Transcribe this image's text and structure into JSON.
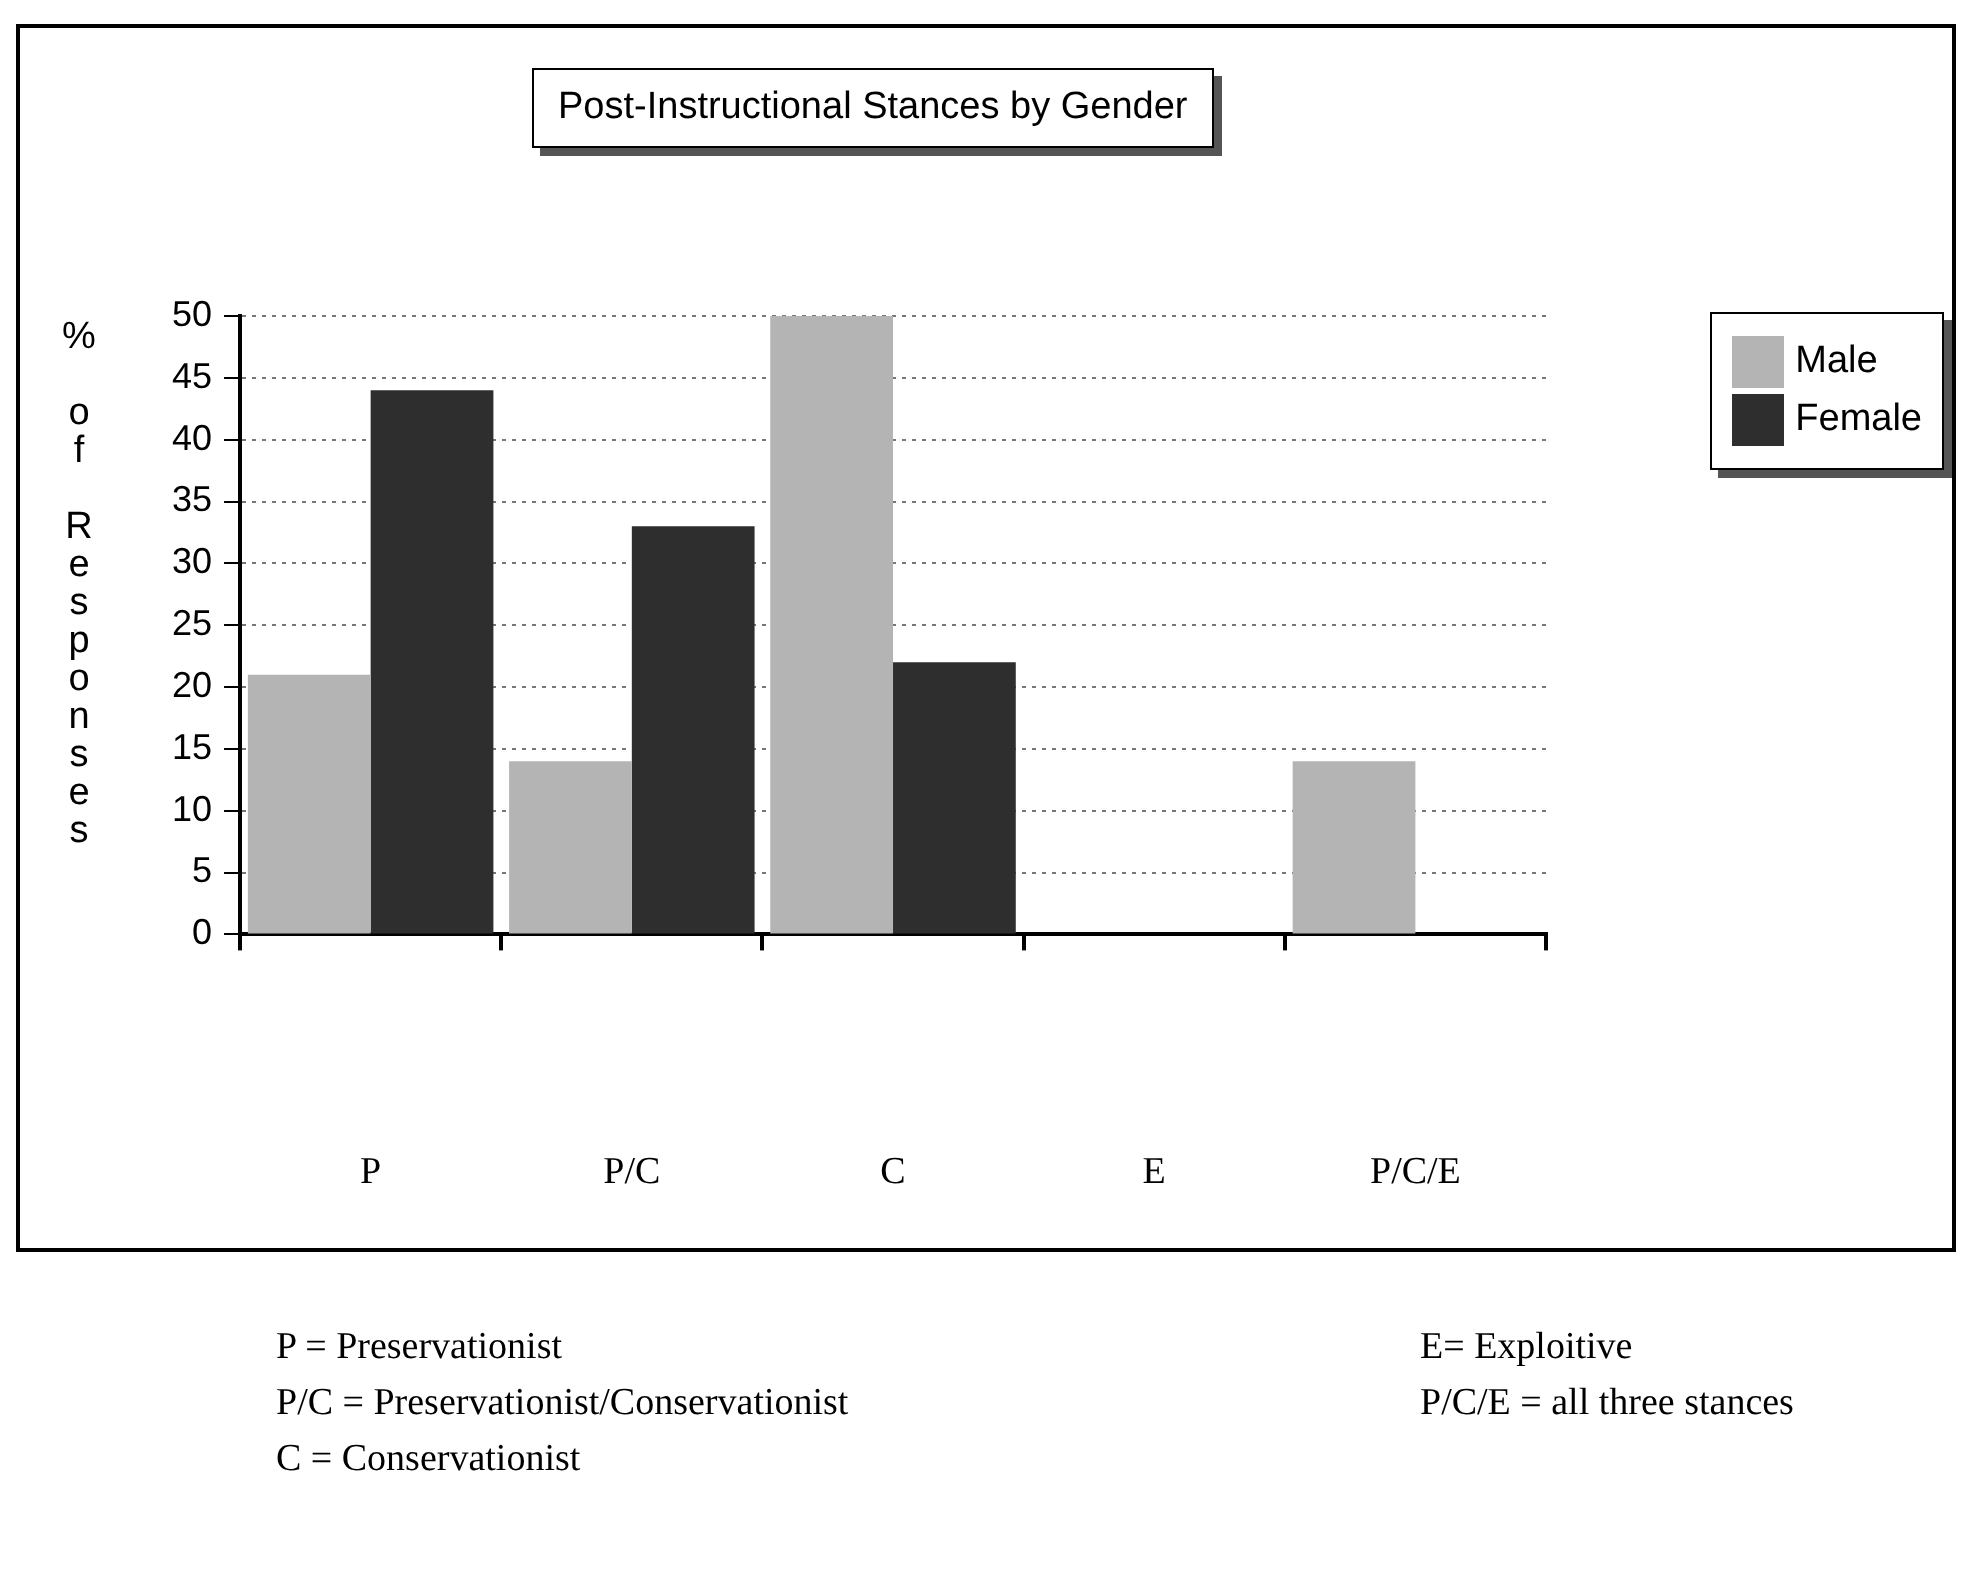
{
  "chart_data": {
    "type": "bar",
    "title": "Post-Instructional Stances by Gender",
    "ylabel": "% of Responses",
    "categories": [
      "P",
      "P/C",
      "C",
      "E",
      "P/C/E"
    ],
    "series": [
      {
        "name": "Male",
        "color": "#b4b4b4",
        "values": [
          21,
          14,
          50,
          0,
          14
        ]
      },
      {
        "name": "Female",
        "color": "#2e2e2e",
        "values": [
          44,
          33,
          22,
          0,
          0
        ]
      }
    ],
    "ylim": [
      0,
      50
    ],
    "yticks": [
      0,
      5,
      10,
      15,
      20,
      25,
      30,
      35,
      40,
      45,
      50
    ],
    "grid": "y",
    "legend": "top right",
    "annotations": [
      "P = Preservationist",
      "P/C = Preservationist/Conservationist",
      "C = Conservationist",
      "E= Exploitive",
      "P/C/E = all three stances"
    ]
  }
}
